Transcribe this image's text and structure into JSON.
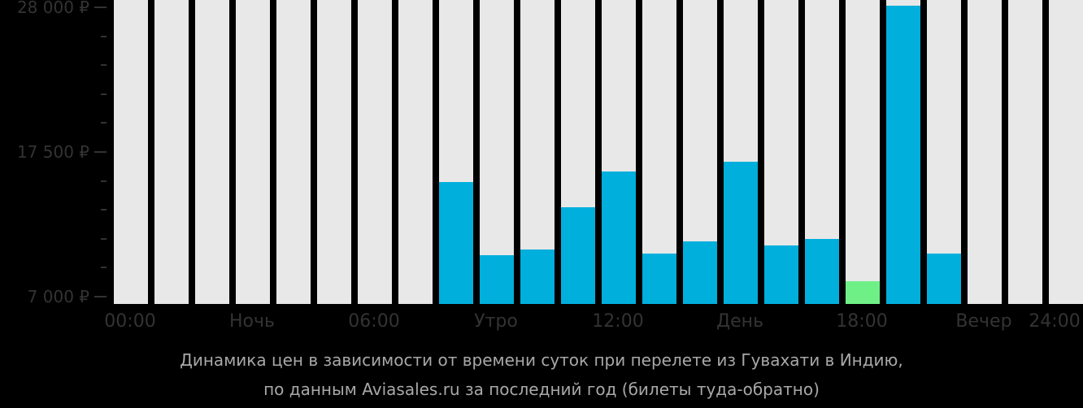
{
  "chart_data": {
    "type": "bar",
    "title": "Динамика цен в зависимости от времени суток при перелете из Гувахати в Индию, по данным Aviasales.ru за последний год (билеты туда-обратно)",
    "xlabel": "",
    "ylabel": "",
    "ylim": [
      7000,
      28000
    ],
    "grid": false,
    "legend": null,
    "y_ticks": [
      {
        "value": 28000,
        "label": "28 000 ₽"
      },
      {
        "value": 17500,
        "label": "17 500 ₽"
      },
      {
        "value": 7000,
        "label": "7 000 ₽"
      }
    ],
    "x_tick_labels": [
      {
        "hour": 0,
        "label": "00:00"
      },
      {
        "hour": 3,
        "label": "Ночь"
      },
      {
        "hour": 6,
        "label": "06:00"
      },
      {
        "hour": 9,
        "label": "Утро"
      },
      {
        "hour": 12,
        "label": "12:00"
      },
      {
        "hour": 15,
        "label": "День"
      },
      {
        "hour": 18,
        "label": "18:00"
      },
      {
        "hour": 21,
        "label": "Вечер"
      },
      {
        "hour": 24,
        "label": "24:00"
      }
    ],
    "categories": [
      "0",
      "1",
      "2",
      "3",
      "4",
      "5",
      "6",
      "7",
      "8",
      "9",
      "10",
      "11",
      "12",
      "13",
      "14",
      "15",
      "16",
      "17",
      "18",
      "19",
      "20",
      "21",
      "22",
      "23"
    ],
    "values": [
      null,
      null,
      null,
      null,
      null,
      null,
      null,
      null,
      15300,
      10000,
      10400,
      13500,
      16100,
      10100,
      11000,
      16800,
      10700,
      11200,
      8100,
      28100,
      10100,
      null,
      null,
      null
    ],
    "highlight_min_index": 18,
    "colors": {
      "bar": "#00afdc",
      "min_bar": "#6ef087",
      "empty": "#e8e8e8",
      "background": "#000000"
    }
  },
  "caption": {
    "line1": "Динамика цен в зависимости от времени суток при перелете из Гувахати в Индию,",
    "line2": "по данным Aviasales.ru за последний год (билеты туда-обратно)"
  }
}
